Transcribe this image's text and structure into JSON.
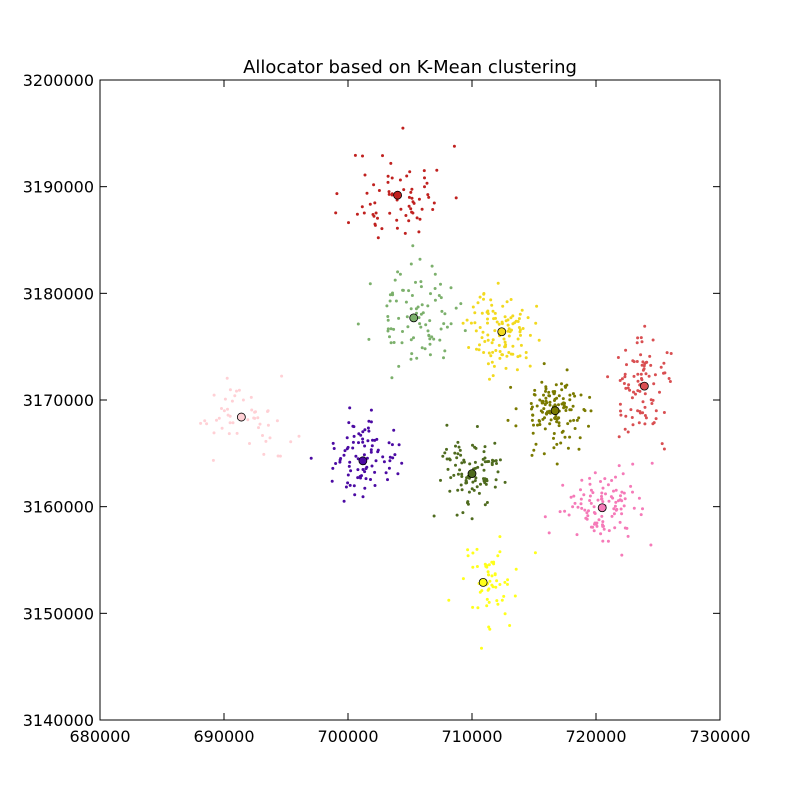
{
  "chart_data": {
    "type": "scatter",
    "title": "Allocator based on K-Mean clustering",
    "xlabel": "",
    "ylabel": "",
    "xlim": [
      680000,
      730000
    ],
    "ylim": [
      3140000,
      3200000
    ],
    "xticks": [
      "680000",
      "690000",
      "700000",
      "710000",
      "720000",
      "730000"
    ],
    "yticks": [
      "3140000",
      "3150000",
      "3160000",
      "3170000",
      "3180000",
      "3190000",
      "3200000"
    ],
    "grid": false,
    "legend": "none",
    "clusters": [
      {
        "color": "#c0211f",
        "centroid": [
          704000,
          3189200
        ],
        "spread": [
          3600,
          4200
        ],
        "n": 70,
        "seed": 11
      },
      {
        "color": "#7cb06c",
        "centroid": [
          705300,
          3177700
        ],
        "spread": [
          3000,
          4000
        ],
        "n": 90,
        "seed": 23
      },
      {
        "color": "#f2d91f",
        "centroid": [
          712400,
          3176400
        ],
        "spread": [
          2400,
          3400
        ],
        "n": 110,
        "seed": 37
      },
      {
        "color": "#d94f52",
        "centroid": [
          723900,
          3171300
        ],
        "spread": [
          2300,
          4200
        ],
        "n": 90,
        "seed": 41
      },
      {
        "color": "#7a7a00",
        "centroid": [
          716700,
          3169000
        ],
        "spread": [
          2600,
          3200
        ],
        "n": 130,
        "seed": 53
      },
      {
        "color": "#4b0aa3",
        "centroid": [
          701200,
          3164300
        ],
        "spread": [
          2600,
          3400
        ],
        "n": 90,
        "seed": 67
      },
      {
        "color": "#4f6b1f",
        "centroid": [
          710000,
          3163100
        ],
        "spread": [
          2600,
          3500
        ],
        "n": 95,
        "seed": 71
      },
      {
        "color": "#f57ab8",
        "centroid": [
          720500,
          3159900
        ],
        "spread": [
          3000,
          3000
        ],
        "n": 110,
        "seed": 83
      },
      {
        "color": "#ffff1a",
        "centroid": [
          710900,
          3152900
        ],
        "spread": [
          2500,
          3800
        ],
        "n": 60,
        "seed": 97
      },
      {
        "color": "#ffd0d5",
        "centroid": [
          691400,
          3168400
        ],
        "spread": [
          3600,
          3400
        ],
        "n": 50,
        "seed": 101
      }
    ]
  }
}
